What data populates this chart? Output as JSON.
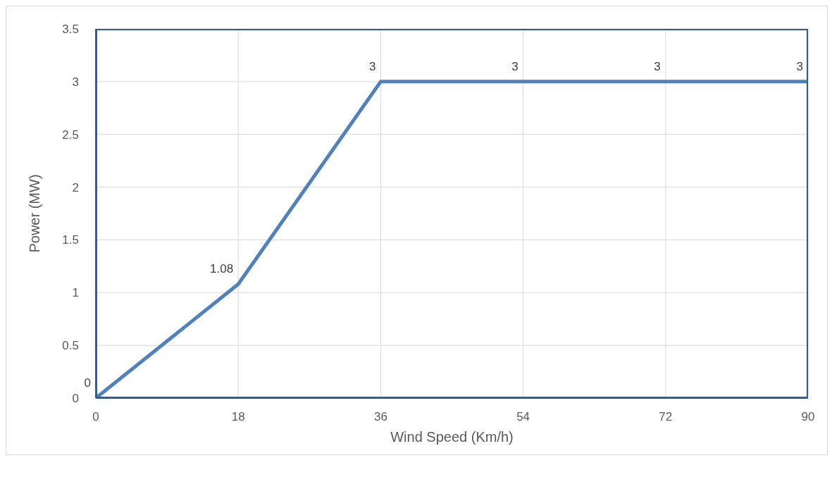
{
  "chart_data": {
    "type": "line",
    "xlabel": "Wind Speed (Km/h)",
    "ylabel": "Power (MW)",
    "x": [
      0,
      18,
      36,
      54,
      72,
      90
    ],
    "series": [
      {
        "color": "#4f81bd",
        "values": [
          0,
          1.08,
          3,
          3,
          3,
          3
        ]
      }
    ],
    "xlim": [
      0,
      90
    ],
    "xticks": [
      0,
      18,
      36,
      54,
      72,
      90
    ],
    "ylim": [
      0,
      3.5
    ],
    "yticks": [
      0,
      0.5,
      1,
      1.5,
      2,
      2.5,
      3,
      3.5
    ],
    "grid": true,
    "data_labels": true,
    "marker": "none",
    "line_style": "solid"
  }
}
